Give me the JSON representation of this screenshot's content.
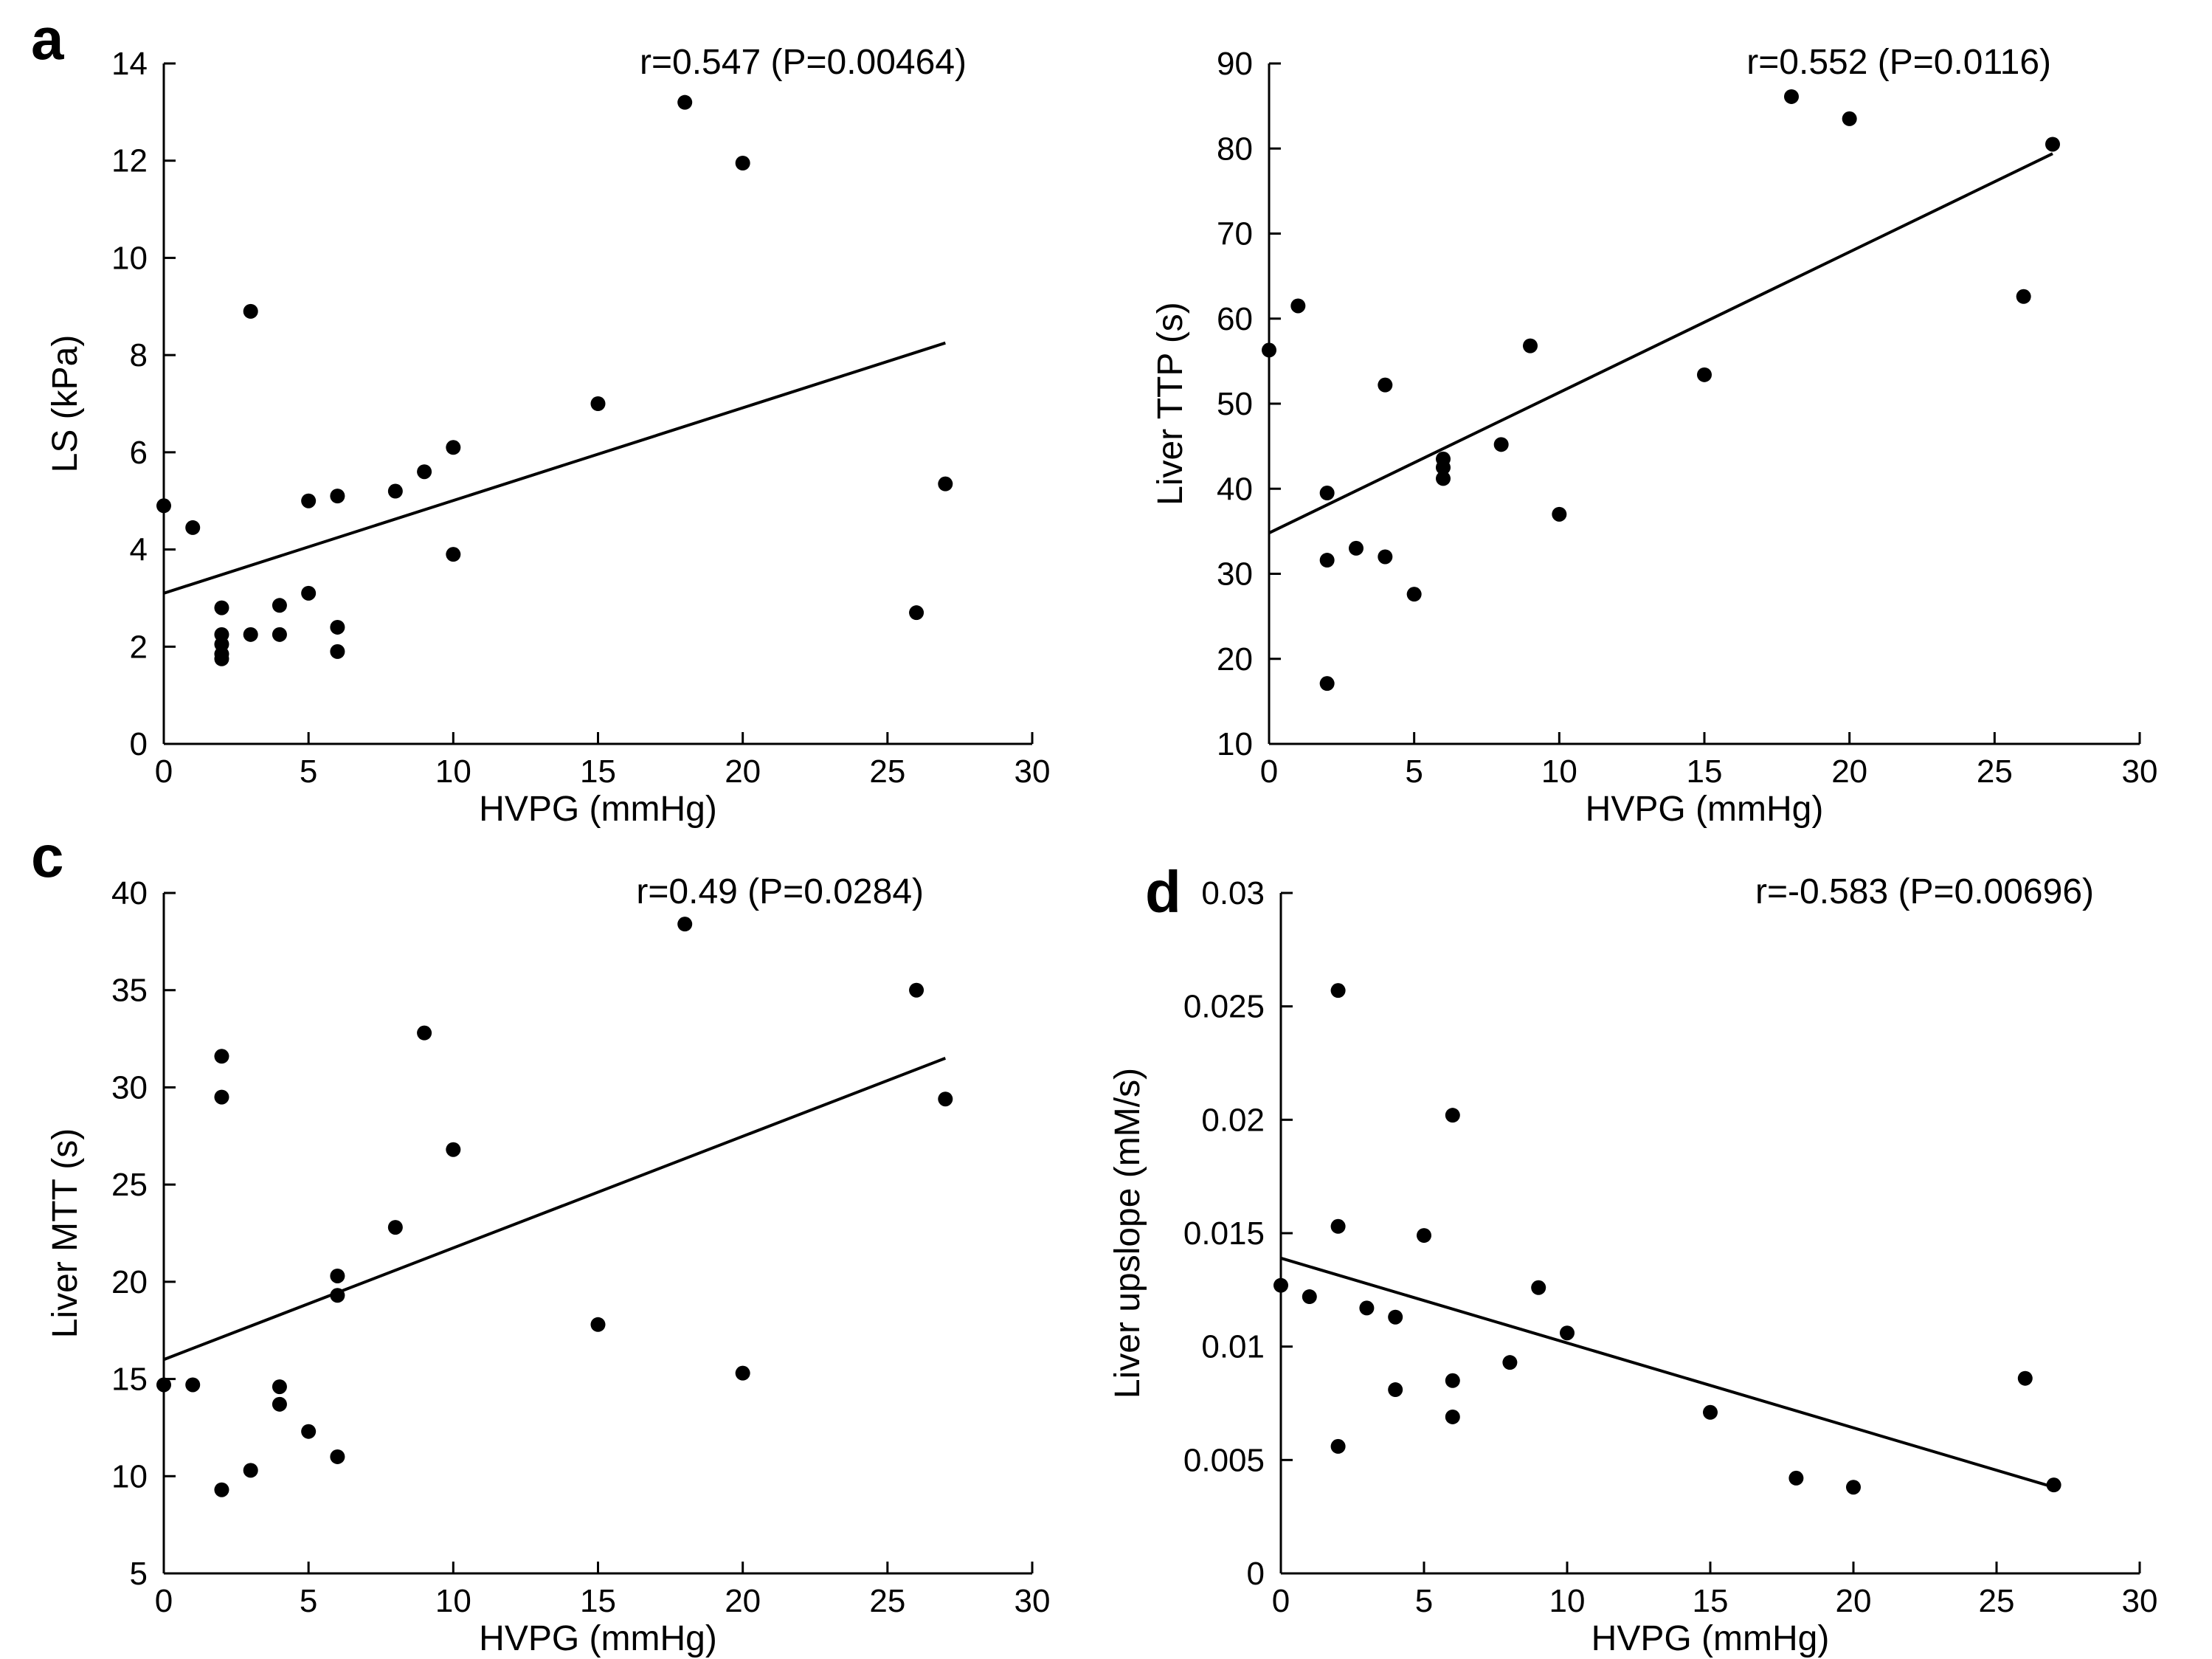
{
  "chart_data": [
    {
      "type": "scatter",
      "panel_label": "a",
      "annotation": "r=0.547 (P=0.00464)",
      "xlabel": "HVPG (mmHg)",
      "ylabel": "LS (kPa)",
      "xlim": [
        0,
        30
      ],
      "ylim": [
        0,
        14
      ],
      "xticks": [
        0,
        5,
        10,
        15,
        20,
        25,
        30
      ],
      "yticks": [
        0,
        2,
        4,
        6,
        8,
        10,
        12,
        14
      ],
      "points": [
        [
          0,
          4.9
        ],
        [
          1,
          4.45
        ],
        [
          2,
          2.8
        ],
        [
          2,
          2.25
        ],
        [
          2,
          2.05
        ],
        [
          2,
          1.85
        ],
        [
          2,
          1.75
        ],
        [
          3,
          8.9
        ],
        [
          3,
          2.25
        ],
        [
          4,
          2.85
        ],
        [
          4,
          2.25
        ],
        [
          5,
          5.0
        ],
        [
          5,
          3.1
        ],
        [
          6,
          5.1
        ],
        [
          6,
          2.4
        ],
        [
          6,
          1.9
        ],
        [
          8,
          5.2
        ],
        [
          9,
          5.6
        ],
        [
          10,
          6.1
        ],
        [
          10,
          3.9
        ],
        [
          15,
          7.0
        ],
        [
          18,
          13.2
        ],
        [
          20,
          11.95
        ],
        [
          26,
          2.7
        ],
        [
          27,
          5.35
        ]
      ],
      "fit_line": {
        "x": [
          0,
          27
        ],
        "y": [
          3.1,
          8.25
        ]
      }
    },
    {
      "type": "scatter",
      "panel_label": "",
      "annotation": "r=0.552 (P=0.0116)",
      "xlabel": "HVPG (mmHg)",
      "ylabel": "Liver TTP (s)",
      "xlim": [
        0,
        30
      ],
      "ylim": [
        10,
        90
      ],
      "xticks": [
        0,
        5,
        10,
        15,
        20,
        25,
        30
      ],
      "yticks": [
        10,
        20,
        30,
        40,
        50,
        60,
        70,
        80,
        90
      ],
      "points": [
        [
          0,
          56.3
        ],
        [
          1,
          61.5
        ],
        [
          2,
          39.5
        ],
        [
          2,
          31.6
        ],
        [
          2,
          17.1
        ],
        [
          3,
          33.0
        ],
        [
          4,
          52.2
        ],
        [
          4,
          32.0
        ],
        [
          5,
          27.6
        ],
        [
          6,
          43.5
        ],
        [
          6,
          42.5
        ],
        [
          6,
          41.2
        ],
        [
          8,
          45.2
        ],
        [
          9,
          56.8
        ],
        [
          10,
          37.0
        ],
        [
          15,
          53.4
        ],
        [
          18,
          86.1
        ],
        [
          20,
          83.5
        ],
        [
          26,
          62.6
        ],
        [
          27,
          80.5
        ]
      ],
      "fit_line": {
        "x": [
          0,
          27
        ],
        "y": [
          34.8,
          79.4
        ]
      }
    },
    {
      "type": "scatter",
      "panel_label": "c",
      "annotation": "r=0.49 (P=0.0284)",
      "xlabel": "HVPG (mmHg)",
      "ylabel": "Liver MTT (s)",
      "xlim": [
        0,
        30
      ],
      "ylim": [
        5,
        40
      ],
      "xticks": [
        0,
        5,
        10,
        15,
        20,
        25,
        30
      ],
      "yticks": [
        5,
        10,
        15,
        20,
        25,
        30,
        35,
        40
      ],
      "points": [
        [
          0,
          14.7
        ],
        [
          1,
          14.7
        ],
        [
          2,
          31.6
        ],
        [
          2,
          29.5
        ],
        [
          2,
          9.3
        ],
        [
          3,
          10.3
        ],
        [
          4,
          14.6
        ],
        [
          4,
          13.7
        ],
        [
          5,
          12.3
        ],
        [
          6,
          20.3
        ],
        [
          6,
          19.3
        ],
        [
          6,
          11.0
        ],
        [
          8,
          22.8
        ],
        [
          9,
          32.8
        ],
        [
          10,
          26.8
        ],
        [
          15,
          17.8
        ],
        [
          18,
          38.4
        ],
        [
          20,
          15.3
        ],
        [
          26,
          35.0
        ],
        [
          27,
          29.4
        ]
      ],
      "fit_line": {
        "x": [
          0,
          27
        ],
        "y": [
          16.0,
          31.5
        ]
      }
    },
    {
      "type": "scatter",
      "panel_label": "d",
      "annotation": "r=-0.583 (P=0.00696)",
      "xlabel": "HVPG (mmHg)",
      "ylabel": "Liver upslope (mM/s)",
      "xlim": [
        0,
        30
      ],
      "ylim": [
        0,
        0.03
      ],
      "xticks": [
        0,
        5,
        10,
        15,
        20,
        25,
        30
      ],
      "yticks": [
        0,
        0.005,
        0.01,
        0.015,
        0.02,
        0.025,
        0.03
      ],
      "ytick_labels": [
        "0",
        "0.005",
        "0.01",
        "0.015",
        "0.02",
        "0.025",
        "0.03"
      ],
      "points": [
        [
          0,
          0.0127
        ],
        [
          1,
          0.0122
        ],
        [
          2,
          0.0257
        ],
        [
          2,
          0.0153
        ],
        [
          2,
          0.0056
        ],
        [
          3,
          0.0117
        ],
        [
          4,
          0.0113
        ],
        [
          4,
          0.0081
        ],
        [
          5,
          0.0149
        ],
        [
          6,
          0.0202
        ],
        [
          6,
          0.0085
        ],
        [
          6,
          0.0069
        ],
        [
          8,
          0.0093
        ],
        [
          9,
          0.0126
        ],
        [
          10,
          0.0106
        ],
        [
          15,
          0.0071
        ],
        [
          18,
          0.0042
        ],
        [
          20,
          0.0038
        ],
        [
          26,
          0.0086
        ],
        [
          27,
          0.0039
        ]
      ],
      "fit_line": {
        "x": [
          0,
          27
        ],
        "y": [
          0.0139,
          0.0038
        ]
      }
    }
  ]
}
